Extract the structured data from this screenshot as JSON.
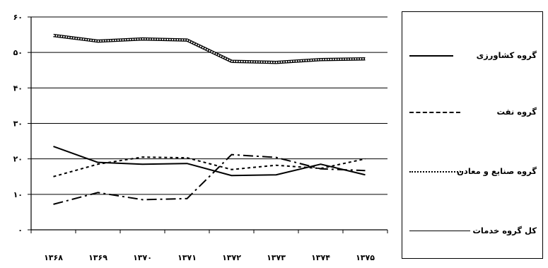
{
  "chart_data": {
    "type": "line",
    "categories": [
      "۱۳۶۸",
      "۱۳۶۹",
      "۱۳۷۰",
      "۱۳۷۱",
      "۱۳۷۲",
      "۱۳۷۳",
      "۱۳۷۴",
      "۱۳۷۵"
    ],
    "y_ticks": [
      "۰",
      "۱۰",
      "۲۰",
      "۳۰",
      "۴۰",
      "۵۰",
      "۶۰"
    ],
    "ylim": [
      0,
      60
    ],
    "grid": true,
    "legend_position": "right",
    "series": [
      {
        "name": "گروه کشاورزی",
        "style": "solid-thick",
        "color": "#000000",
        "values": [
          23.5,
          19,
          18.5,
          18.7,
          15.3,
          15.5,
          18.5,
          15.5
        ]
      },
      {
        "name": "گروه نفت",
        "style": "dash-dot",
        "color": "#000000",
        "values": [
          7.2,
          10.5,
          8.5,
          8.8,
          21.2,
          20.4,
          17.2,
          16.7
        ]
      },
      {
        "name": "گروه صنایع و معادن",
        "style": "dotted",
        "color": "#000000",
        "values": [
          15,
          18.5,
          20.5,
          20.3,
          17,
          18.2,
          17.3,
          20
        ]
      },
      {
        "name": "کل گروه خدمات",
        "style": "solid-outline",
        "color": "#000000",
        "values": [
          54.8,
          53.2,
          53.8,
          53.5,
          47.5,
          47.2,
          48,
          48.2
        ]
      }
    ]
  }
}
